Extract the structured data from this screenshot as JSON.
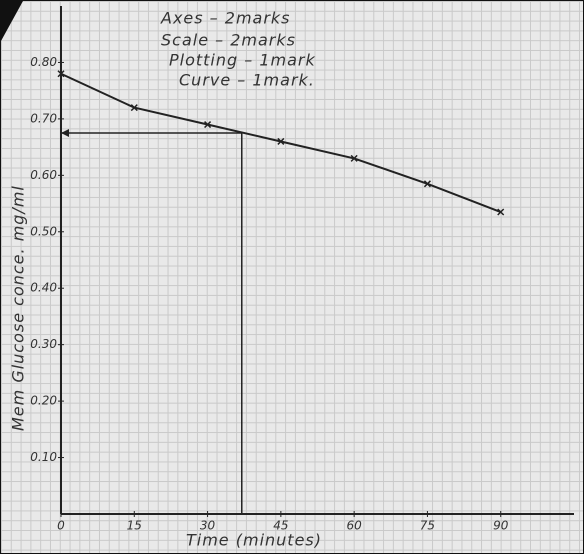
{
  "chart_data": {
    "type": "line",
    "annotations": [
      "Axes  – 2marks",
      "Scale  – 2marks",
      "Plotting – 1mark",
      "Curve  – 1mark."
    ],
    "x_label": "Time (minutes)",
    "y_label": "Mem Glucose conce. mg/ml",
    "x": [
      0,
      15,
      30,
      45,
      60,
      75,
      90
    ],
    "series": [
      {
        "color": "#222222",
        "values": [
          0.78,
          0.72,
          0.69,
          0.66,
          0.63,
          0.585,
          0.535
        ]
      }
    ],
    "xlim": [
      0,
      105
    ],
    "ylim": [
      0,
      0.9
    ],
    "xticks": [
      0,
      15,
      30,
      45,
      60,
      75,
      90
    ],
    "yticks": [
      {
        "value": 0.1,
        "label": "0.10"
      },
      {
        "value": 0.2,
        "label": "0.20"
      },
      {
        "value": 0.3,
        "label": "0.30"
      },
      {
        "value": 0.4,
        "label": "0.40"
      },
      {
        "value": 0.5,
        "label": "0.50"
      },
      {
        "value": 0.6,
        "label": "0.60"
      },
      {
        "value": 0.7,
        "label": "0.70"
      },
      {
        "value": 0.8,
        "label": "0.80"
      }
    ],
    "reading_line": {
      "x": 37,
      "y": 0.675
    },
    "grid": true
  }
}
